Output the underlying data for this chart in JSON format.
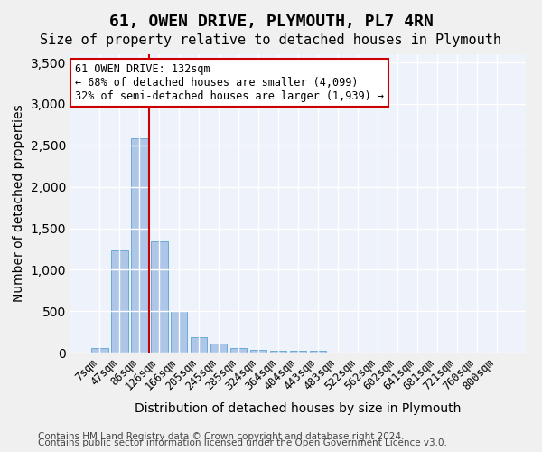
{
  "title": "61, OWEN DRIVE, PLYMOUTH, PL7 4RN",
  "subtitle": "Size of property relative to detached houses in Plymouth",
  "xlabel": "Distribution of detached houses by size in Plymouth",
  "ylabel": "Number of detached properties",
  "categories": [
    "7sqm",
    "47sqm",
    "86sqm",
    "126sqm",
    "166sqm",
    "205sqm",
    "245sqm",
    "285sqm",
    "324sqm",
    "364sqm",
    "404sqm",
    "443sqm",
    "483sqm",
    "522sqm",
    "562sqm",
    "602sqm",
    "641sqm",
    "681sqm",
    "721sqm",
    "760sqm",
    "800sqm"
  ],
  "values": [
    50,
    1230,
    2590,
    1340,
    500,
    185,
    105,
    50,
    30,
    20,
    20,
    20,
    5,
    0,
    0,
    0,
    0,
    0,
    0,
    0,
    0
  ],
  "bar_color": "#aec6e8",
  "bar_edgecolor": "#6aaad4",
  "vline_color": "#cc0000",
  "vline_x": 2.5,
  "ylim": [
    0,
    3600
  ],
  "yticks": [
    0,
    500,
    1000,
    1500,
    2000,
    2500,
    3000,
    3500
  ],
  "annotation_text": "61 OWEN DRIVE: 132sqm\n← 68% of detached houses are smaller (4,099)\n32% of semi-detached houses are larger (1,939) →",
  "annotation_box_color": "#ffffff",
  "annotation_box_edgecolor": "#cc0000",
  "footer_line1": "Contains HM Land Registry data © Crown copyright and database right 2024.",
  "footer_line2": "Contains public sector information licensed under the Open Government Licence v3.0.",
  "background_color": "#eef3fb",
  "fig_background_color": "#f0f0f0",
  "grid_color": "#ffffff",
  "title_fontsize": 13,
  "subtitle_fontsize": 11,
  "axis_label_fontsize": 10,
  "tick_fontsize": 8.5,
  "footer_fontsize": 7.5
}
